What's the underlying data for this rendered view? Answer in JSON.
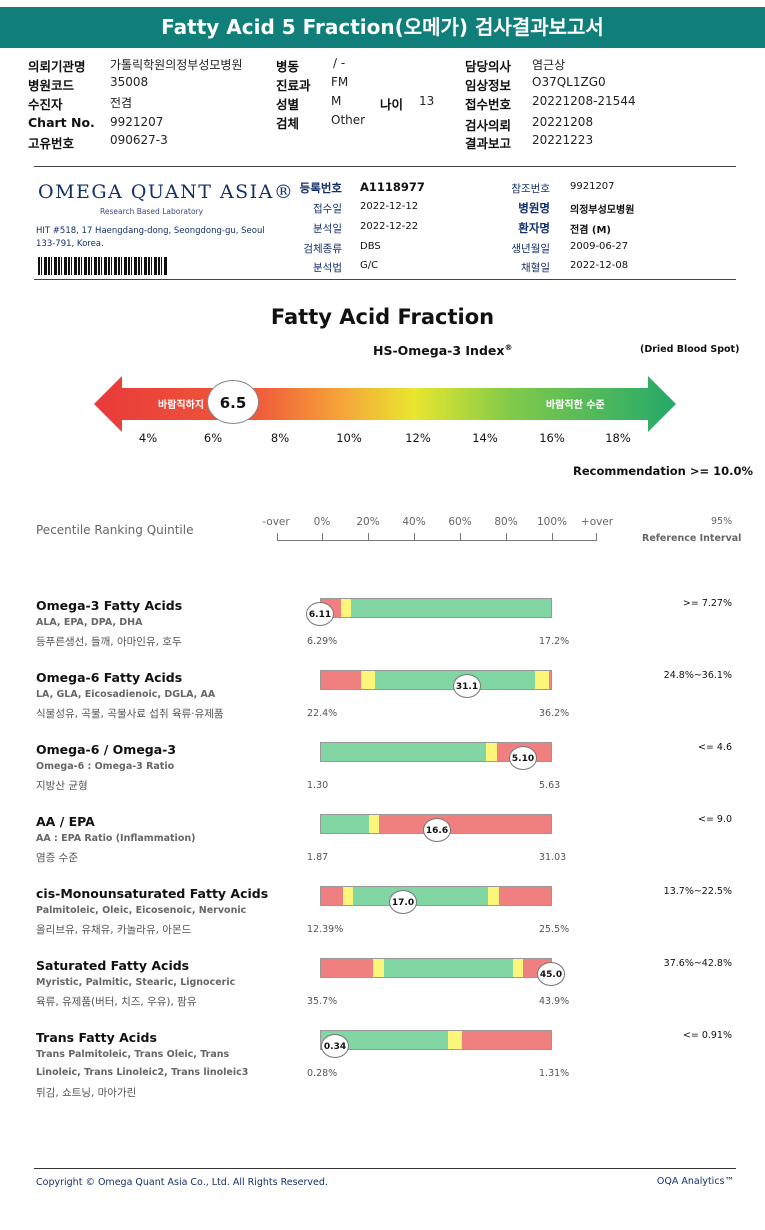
{
  "title": "Fatty Acid 5 Fraction(오메가) 검사결과보고서",
  "info": {
    "col1": [
      {
        "label": "의뢰기관명",
        "value": "가톨릭학원의정부성모병원"
      },
      {
        "label": "병원코드",
        "value": "35008"
      },
      {
        "label": "수진자",
        "value": "전겸"
      },
      {
        "label": "Chart No.",
        "value": "9921207"
      },
      {
        "label": "고유번호",
        "value": "090627-3"
      }
    ],
    "col2": [
      {
        "label": "병동",
        "value": "/ -"
      },
      {
        "label": "진료과",
        "value": "FM"
      },
      {
        "label": "성별",
        "value": "M"
      },
      {
        "label": "검체",
        "value": "Other"
      }
    ],
    "age_label": "나이",
    "age_value": "13",
    "col3": [
      {
        "label": "담당의사",
        "value": "염근상"
      },
      {
        "label": "임상정보",
        "value": "O37QL1ZG0"
      },
      {
        "label": "접수번호",
        "value": "20221208-21544"
      },
      {
        "label": "검사의뢰",
        "value": "20221208"
      },
      {
        "label": "결과보고",
        "value": "20221223"
      }
    ]
  },
  "lab": {
    "logo": "OMEGA QUANT ASIA®",
    "logo_sub": "Research Based Laboratory",
    "address": "HIT #518, 17 Haengdang-dong, Seongdong-gu, Seoul 133-791, Korea.",
    "left_fields": [
      {
        "label": "등록번호",
        "value": "A1118977",
        "bold": true
      },
      {
        "label": "접수일",
        "value": "2022-12-12"
      },
      {
        "label": "분석일",
        "value": "2022-12-22"
      },
      {
        "label": "검체종류",
        "value": "DBS"
      },
      {
        "label": "분석법",
        "value": "G/C"
      }
    ],
    "right_fields": [
      {
        "label": "참조번호",
        "value": "9921207"
      },
      {
        "label": "병원명",
        "value": "의정부성모병원",
        "bold": true
      },
      {
        "label": "환자명",
        "value": "전겸 (M)",
        "bold": true
      },
      {
        "label": "생년월일",
        "value": "2009-06-27"
      },
      {
        "label": "채혈일",
        "value": "2022-12-08"
      }
    ]
  },
  "fraction_title": "Fatty Acid Fraction",
  "index_title": "HS-Omega-3 Index",
  "index_sup": "®",
  "sample_type": "(Dried Blood Spot)",
  "arrow": {
    "left_text": "바람직하지",
    "right_text": "바람직한 수준",
    "value": "6.5",
    "ticks": [
      "4%",
      "6%",
      "8%",
      "10%",
      "12%",
      "14%",
      "16%",
      "18%"
    ]
  },
  "recommendation": "Recommendation  >= 10.0%",
  "percentile": {
    "label": "Pecentile Ranking Quintile",
    "headers": [
      "-over",
      "0%",
      "20%",
      "40%",
      "60%",
      "80%",
      "100%",
      "+over"
    ],
    "ref_pct": "95%",
    "ref_label": "Reference Interval"
  },
  "metrics": [
    {
      "name": "Omega-3 Fatty Acids",
      "sub": "ALA, EPA, DPA, DHA",
      "food": "등푸른생선, 들깨, 아마인유, 호두",
      "value": "6.11",
      "min": "6.29%",
      "max": "17.2%",
      "ref": ">= 7.27%"
    },
    {
      "name": "Omega-6 Fatty Acids",
      "sub": "LA, GLA, Eicosadienoic, DGLA, AA",
      "food": "식물성유, 곡물, 곡물사료 섭취 육류·유제품",
      "value": "31.1",
      "min": "22.4%",
      "max": "36.2%",
      "ref": "24.8%~36.1%"
    },
    {
      "name": "Omega-6 / Omega-3",
      "sub": "Omega-6 : Omega-3 Ratio",
      "food": "지방산 균형",
      "value": "5.10",
      "min": "1.30",
      "max": "5.63",
      "ref": "<= 4.6"
    },
    {
      "name": "AA / EPA",
      "sub": "AA : EPA Ratio (Inflammation)",
      "food": "염증 수준",
      "value": "16.6",
      "min": "1.87",
      "max": "31.03",
      "ref": "<= 9.0"
    },
    {
      "name": "cis-Monounsaturated Fatty Acids",
      "sub": "Palmitoleic, Oleic, Eicosenoic, Nervonic",
      "food": "올리브유, 유채유, 카놀라유, 아몬드",
      "value": "17.0",
      "min": "12.39%",
      "max": "25.5%",
      "ref": "13.7%~22.5%"
    },
    {
      "name": "Saturated Fatty Acids",
      "sub": "Myristic, Palmitic, Stearic, Lignoceric",
      "food": "육류, 유제품(버터, 치즈, 우유), 팜유",
      "value": "45.0",
      "min": "35.7%",
      "max": "43.9%",
      "ref": "37.6%~42.8%"
    },
    {
      "name": "Trans Fatty Acids",
      "sub": "Trans Palmitoleic, Trans Oleic, Trans",
      "sub2": "Linoleic, Trans Linoleic2, Trans linoleic3",
      "food": "튀김, 쇼트닝, 마아가린",
      "value": "0.34",
      "min": "0.28%",
      "max": "1.31%",
      "ref": "<= 0.91%"
    }
  ],
  "colors": {
    "red": "#f08080",
    "yellow": "#fbf57a",
    "green": "#82d6a3",
    "teal": "#107f7a"
  },
  "footer": {
    "copyright": "Copyright © Omega Quant Asia Co., Ltd.  All Rights Reserved.",
    "brand": "OQA Analytics™"
  }
}
